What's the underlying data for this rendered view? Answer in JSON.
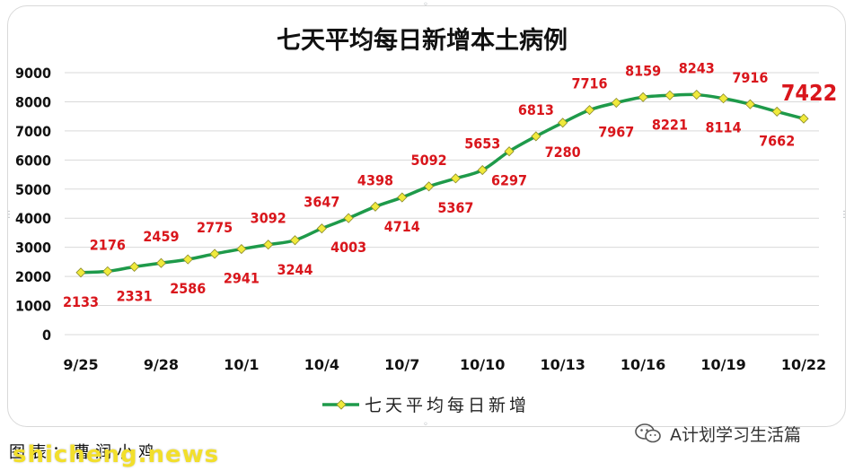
{
  "chart_data": {
    "type": "line",
    "title": "七天平均每日新增本土病例",
    "x": [
      "9/25",
      "9/26",
      "9/27",
      "9/28",
      "9/29",
      "9/30",
      "10/1",
      "10/2",
      "10/3",
      "10/4",
      "10/5",
      "10/6",
      "10/7",
      "10/8",
      "10/9",
      "10/10",
      "10/11",
      "10/12",
      "10/13",
      "10/14",
      "10/15",
      "10/16",
      "10/17",
      "10/18",
      "10/19",
      "10/20",
      "10/21",
      "10/22"
    ],
    "x_tick_labels": [
      "9/25",
      "9/28",
      "10/1",
      "10/4",
      "10/7",
      "10/10",
      "10/13",
      "10/16",
      "10/19",
      "10/22"
    ],
    "series": [
      {
        "name": "七天平均每日新增",
        "values": [
          2133,
          2176,
          2331,
          2459,
          2586,
          2775,
          2941,
          3092,
          3244,
          3647,
          4003,
          4398,
          4714,
          5092,
          5367,
          5653,
          6297,
          6813,
          7280,
          7716,
          7967,
          8159,
          8221,
          8243,
          8114,
          7916,
          7662,
          7422
        ]
      }
    ],
    "ylim": [
      0,
      9000
    ],
    "y_ticks": [
      0,
      1000,
      2000,
      3000,
      4000,
      5000,
      6000,
      7000,
      8000,
      9000
    ],
    "grid": "horizontal",
    "legend_position": "bottom",
    "line_color": "#1e9a4a",
    "marker_color": "#f0ea3c",
    "label_color": "#d9161c"
  },
  "footer": {
    "source_text": "图表：曹润小鸡",
    "site_watermark": "shicheng.news",
    "account_watermark": "A计划学习生活篇",
    "account_icon": "wechat-icon"
  }
}
